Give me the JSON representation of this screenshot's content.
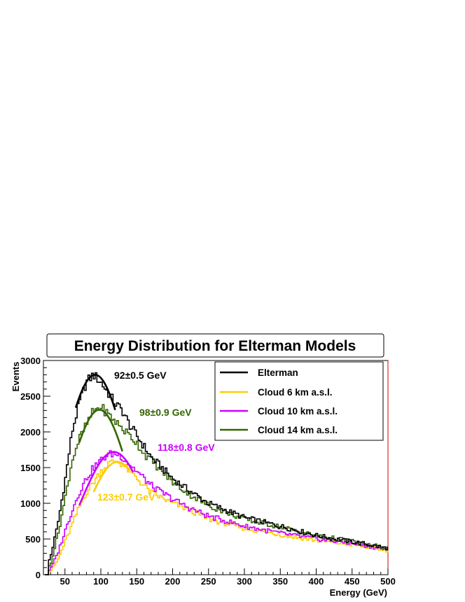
{
  "chart_data": {
    "type": "line",
    "title": "Energy Distribution for Elterman Models",
    "xlabel": "Energy (GeV)",
    "ylabel": "Events",
    "xlim": [
      20,
      500
    ],
    "ylim": [
      0,
      3000
    ],
    "x_ticks": [
      50,
      100,
      150,
      200,
      250,
      300,
      350,
      400,
      450,
      500
    ],
    "y_ticks": [
      0,
      500,
      1000,
      1500,
      2000,
      2500,
      3000
    ],
    "legend_position": "top-right",
    "series": [
      {
        "name": "Elterman",
        "color": "#000000",
        "shape_points": [
          [
            20,
            0
          ],
          [
            30,
            250
          ],
          [
            40,
            700
          ],
          [
            50,
            1300
          ],
          [
            60,
            2000
          ],
          [
            70,
            2400
          ],
          [
            80,
            2700
          ],
          [
            90,
            2800
          ],
          [
            100,
            2700
          ],
          [
            110,
            2550
          ],
          [
            120,
            2400
          ],
          [
            130,
            2300
          ],
          [
            140,
            2100
          ],
          [
            150,
            1950
          ],
          [
            160,
            1800
          ],
          [
            170,
            1650
          ],
          [
            180,
            1550
          ],
          [
            200,
            1350
          ],
          [
            220,
            1200
          ],
          [
            250,
            1000
          ],
          [
            300,
            800
          ],
          [
            350,
            680
          ],
          [
            400,
            550
          ],
          [
            450,
            460
          ],
          [
            500,
            370
          ]
        ],
        "fit": {
          "mean": 92,
          "sigma": 45,
          "amplitude": 2800,
          "range": [
            65,
            120
          ]
        },
        "annotation": "92±0.5 GeV"
      },
      {
        "name": "Cloud 6 km a.s.l.",
        "color": "#ffcc00",
        "shape_points": [
          [
            20,
            0
          ],
          [
            30,
            50
          ],
          [
            40,
            200
          ],
          [
            50,
            450
          ],
          [
            60,
            700
          ],
          [
            70,
            950
          ],
          [
            80,
            1150
          ],
          [
            90,
            1300
          ],
          [
            100,
            1450
          ],
          [
            110,
            1550
          ],
          [
            120,
            1600
          ],
          [
            130,
            1550
          ],
          [
            140,
            1450
          ],
          [
            150,
            1350
          ],
          [
            160,
            1250
          ],
          [
            170,
            1150
          ],
          [
            180,
            1100
          ],
          [
            200,
            1000
          ],
          [
            220,
            920
          ],
          [
            250,
            780
          ],
          [
            300,
            650
          ],
          [
            350,
            560
          ],
          [
            400,
            480
          ],
          [
            450,
            420
          ],
          [
            500,
            340
          ]
        ],
        "fit": {
          "mean": 123,
          "sigma": 42,
          "amplitude": 1580,
          "range": [
            90,
            140
          ]
        },
        "annotation": "123±0.7 GeV"
      },
      {
        "name": "Cloud 10 km a.s.l.",
        "color": "#cc00ff",
        "shape_points": [
          [
            20,
            0
          ],
          [
            30,
            80
          ],
          [
            40,
            300
          ],
          [
            50,
            600
          ],
          [
            60,
            900
          ],
          [
            70,
            1150
          ],
          [
            80,
            1350
          ],
          [
            90,
            1500
          ],
          [
            100,
            1600
          ],
          [
            110,
            1680
          ],
          [
            120,
            1700
          ],
          [
            130,
            1650
          ],
          [
            140,
            1550
          ],
          [
            150,
            1450
          ],
          [
            160,
            1350
          ],
          [
            170,
            1250
          ],
          [
            180,
            1180
          ],
          [
            200,
            1060
          ],
          [
            220,
            950
          ],
          [
            250,
            820
          ],
          [
            300,
            680
          ],
          [
            350,
            580
          ],
          [
            400,
            500
          ],
          [
            450,
            440
          ],
          [
            500,
            350
          ]
        ],
        "fit": {
          "mean": 118,
          "sigma": 45,
          "amplitude": 1720,
          "range": [
            70,
            145
          ]
        },
        "annotation": "118±0.8 GeV"
      },
      {
        "name": "Cloud 14 km a.s.l.",
        "color": "#336600",
        "shape_points": [
          [
            20,
            0
          ],
          [
            30,
            150
          ],
          [
            40,
            550
          ],
          [
            50,
            1050
          ],
          [
            60,
            1600
          ],
          [
            70,
            1900
          ],
          [
            80,
            2100
          ],
          [
            90,
            2300
          ],
          [
            100,
            2350
          ],
          [
            110,
            2250
          ],
          [
            120,
            2150
          ],
          [
            130,
            2050
          ],
          [
            140,
            1950
          ],
          [
            150,
            1850
          ],
          [
            160,
            1700
          ],
          [
            170,
            1600
          ],
          [
            180,
            1500
          ],
          [
            200,
            1300
          ],
          [
            220,
            1150
          ],
          [
            250,
            970
          ],
          [
            300,
            780
          ],
          [
            350,
            670
          ],
          [
            400,
            550
          ],
          [
            450,
            470
          ],
          [
            500,
            370
          ]
        ],
        "fit": {
          "mean": 98,
          "sigma": 42,
          "amplitude": 2310,
          "range": [
            70,
            130
          ]
        },
        "annotation": "98±0.9 GeV"
      }
    ]
  }
}
